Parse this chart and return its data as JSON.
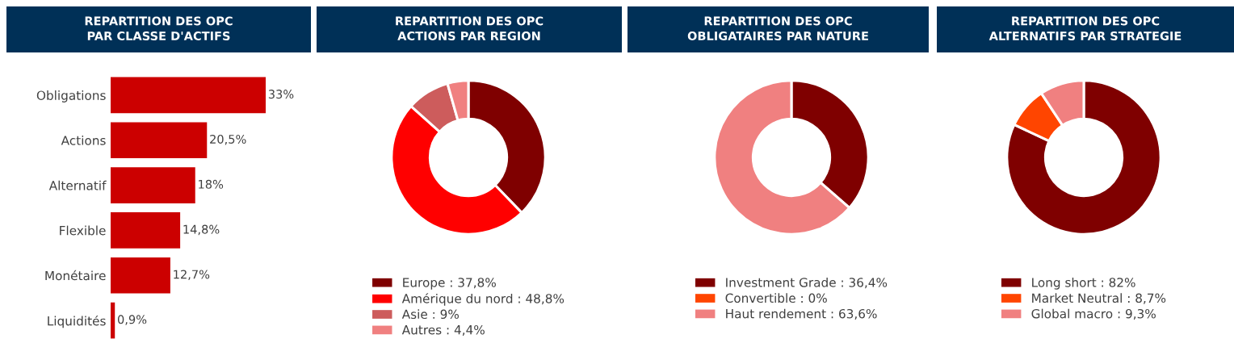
{
  "chart_data": [
    {
      "type": "bar",
      "orientation": "horizontal",
      "title": "REPARTITION DES OPC\nPAR CLASSE D'ACTIFS",
      "categories": [
        "Obligations",
        "Actions",
        "Alternatif",
        "Flexible",
        "Monétaire",
        "Liquidités"
      ],
      "values": [
        33,
        20.5,
        18,
        14.8,
        12.7,
        0.9
      ],
      "value_labels": [
        "33%",
        "20,5%",
        "18%",
        "14,8%",
        "12,7%",
        "0,9%"
      ],
      "color": "#cc0000"
    },
    {
      "type": "donut",
      "title": "REPARTITION DES OPC\nACTIONS PAR REGION",
      "categories": [
        "Europe",
        "Amérique du nord",
        "Asie",
        "Autres"
      ],
      "values": [
        37.8,
        48.8,
        9,
        4.4
      ],
      "value_labels": [
        "37,8%",
        "48,8%",
        "9%",
        "4,4%"
      ],
      "colors": [
        "#7f0000",
        "#ff0000",
        "#cd5c5c",
        "#f08080"
      ],
      "legend": "bottom"
    },
    {
      "type": "donut",
      "title": "REPARTITION DES OPC\nOBLIGATAIRES PAR NATURE",
      "categories": [
        "Investment Grade",
        "Convertible",
        "Haut rendement"
      ],
      "values": [
        36.4,
        0,
        63.6
      ],
      "value_labels": [
        "36,4%",
        "0%",
        "63,6%"
      ],
      "colors": [
        "#7f0000",
        "#ff4500",
        "#f08080"
      ],
      "legend": "bottom"
    },
    {
      "type": "donut",
      "title": "REPARTITION DES OPC\nALTERNATIFS PAR STRATEGIE",
      "categories": [
        "Long short",
        "Market Neutral",
        "Global macro"
      ],
      "values": [
        82,
        8.7,
        9.3
      ],
      "value_labels": [
        "82%",
        "8,7%",
        "9,3%"
      ],
      "colors": [
        "#7f0000",
        "#ff4500",
        "#f08080"
      ],
      "legend": "bottom"
    }
  ]
}
